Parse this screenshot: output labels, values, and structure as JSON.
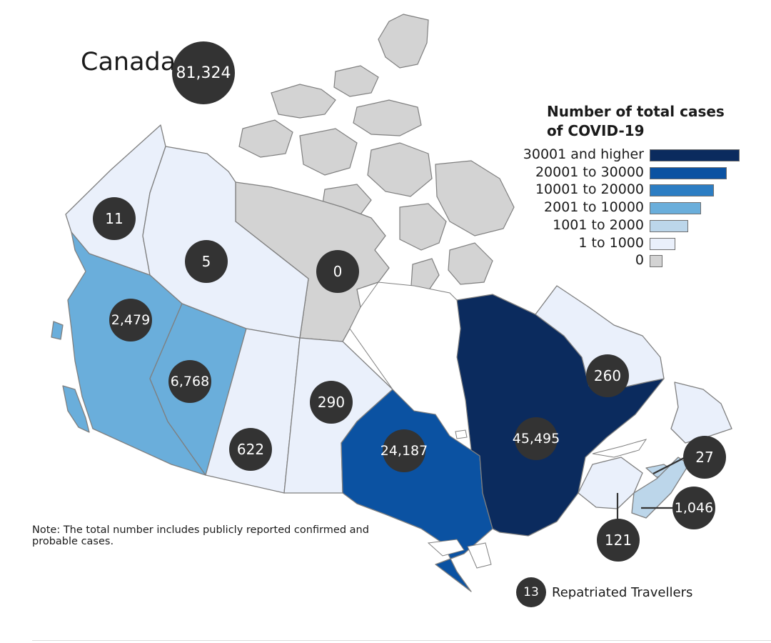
{
  "title": "Canada",
  "total": "81,324",
  "legend": {
    "title_line1": "Number of total cases",
    "title_line2": "of COVID-19",
    "items": [
      {
        "label": "30001 and higher",
        "color": "#0b2b5e"
      },
      {
        "label": "20001 to 30000",
        "color": "#0b52a2"
      },
      {
        "label": "10001 to 20000",
        "color": "#2c7dc3"
      },
      {
        "label": "2001 to 10000",
        "color": "#6aaedb"
      },
      {
        "label": "1001 to 2000",
        "color": "#bcd6ea"
      },
      {
        "label": "1 to 1000",
        "color": "#eaf0fb"
      },
      {
        "label": "0",
        "color": "#d3d3d3"
      }
    ]
  },
  "regions": {
    "yukon": "11",
    "northwest_territories": "5",
    "nunavut": "0",
    "british_columbia": "2,479",
    "alberta": "6,768",
    "saskatchewan": "622",
    "manitoba": "290",
    "ontario": "24,187",
    "quebec": "45,495",
    "newfoundland_labrador": "260",
    "prince_edward_island": "27",
    "nova_scotia": "1,046",
    "new_brunswick": "121"
  },
  "note": "Note: The total number includes publicly reported confirmed and probable cases.",
  "repatriated": {
    "count": "13",
    "label": "Repatriated Travellers"
  }
}
